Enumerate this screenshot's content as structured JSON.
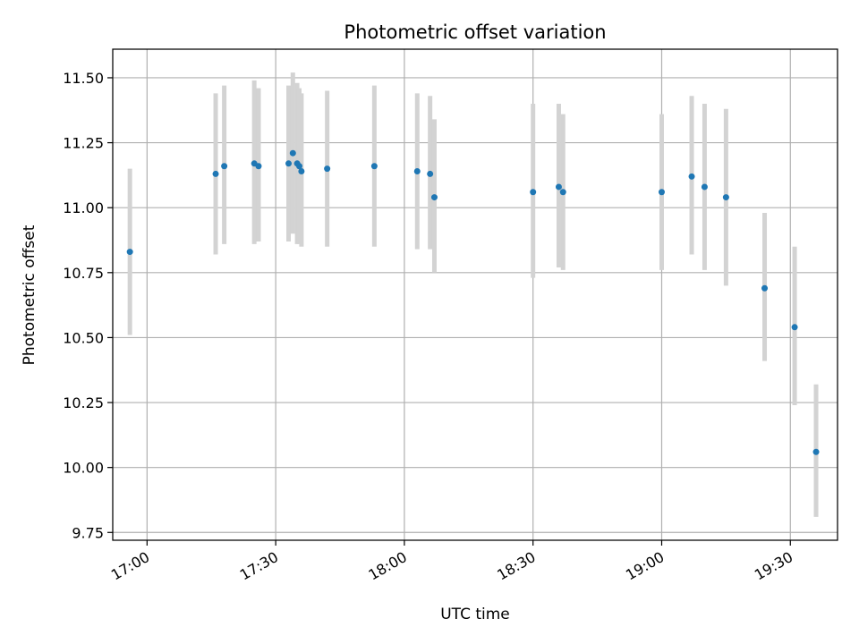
{
  "chart_data": {
    "type": "scatter",
    "title": "Photometric offset variation",
    "xlabel": "UTC time",
    "ylabel": "Photometric offset",
    "x_is_time": true,
    "xlim": [
      "16:52",
      "19:41"
    ],
    "ylim": [
      9.72,
      11.61
    ],
    "xticks": [
      "17:00",
      "17:30",
      "18:00",
      "18:30",
      "19:00",
      "19:30"
    ],
    "yticks": [
      "9.75",
      "10.00",
      "10.25",
      "10.50",
      "10.75",
      "11.00",
      "11.25",
      "11.50"
    ],
    "grid": true,
    "point_color": "#1f77b4",
    "errorbar_color": "#d3d3d3",
    "series": [
      {
        "points": [
          {
            "x": "16:56",
            "y": 10.83,
            "lo": 10.51,
            "hi": 11.15
          },
          {
            "x": "17:16",
            "y": 11.13,
            "lo": 10.82,
            "hi": 11.44
          },
          {
            "x": "17:18",
            "y": 11.16,
            "lo": 10.86,
            "hi": 11.47
          },
          {
            "x": "17:25",
            "y": 11.17,
            "lo": 10.86,
            "hi": 11.49
          },
          {
            "x": "17:26",
            "y": 11.16,
            "lo": 10.87,
            "hi": 11.46
          },
          {
            "x": "17:33",
            "y": 11.17,
            "lo": 10.87,
            "hi": 11.47
          },
          {
            "x": "17:34",
            "y": 11.21,
            "lo": 10.9,
            "hi": 11.52
          },
          {
            "x": "17:35",
            "y": 11.17,
            "lo": 10.86,
            "hi": 11.48
          },
          {
            "x": "17:35.5",
            "y": 11.16,
            "lo": 10.86,
            "hi": 11.46
          },
          {
            "x": "17:36",
            "y": 11.14,
            "lo": 10.85,
            "hi": 11.44
          },
          {
            "x": "17:42",
            "y": 11.15,
            "lo": 10.85,
            "hi": 11.45
          },
          {
            "x": "17:53",
            "y": 11.16,
            "lo": 10.85,
            "hi": 11.47
          },
          {
            "x": "18:03",
            "y": 11.14,
            "lo": 10.84,
            "hi": 11.44
          },
          {
            "x": "18:06",
            "y": 11.13,
            "lo": 10.84,
            "hi": 11.43
          },
          {
            "x": "18:07",
            "y": 11.04,
            "lo": 10.75,
            "hi": 11.34
          },
          {
            "x": "18:30",
            "y": 11.06,
            "lo": 10.73,
            "hi": 11.4
          },
          {
            "x": "18:36",
            "y": 11.08,
            "lo": 10.77,
            "hi": 11.4
          },
          {
            "x": "18:37",
            "y": 11.06,
            "lo": 10.76,
            "hi": 11.36
          },
          {
            "x": "19:00",
            "y": 11.06,
            "lo": 10.76,
            "hi": 11.36
          },
          {
            "x": "19:07",
            "y": 11.12,
            "lo": 10.82,
            "hi": 11.43
          },
          {
            "x": "19:10",
            "y": 11.08,
            "lo": 10.76,
            "hi": 11.4
          },
          {
            "x": "19:15",
            "y": 11.04,
            "lo": 10.7,
            "hi": 11.38
          },
          {
            "x": "19:24",
            "y": 10.69,
            "lo": 10.41,
            "hi": 10.98
          },
          {
            "x": "19:31",
            "y": 10.54,
            "lo": 10.24,
            "hi": 10.85
          },
          {
            "x": "19:36",
            "y": 10.06,
            "lo": 9.81,
            "hi": 10.32
          }
        ]
      }
    ]
  }
}
